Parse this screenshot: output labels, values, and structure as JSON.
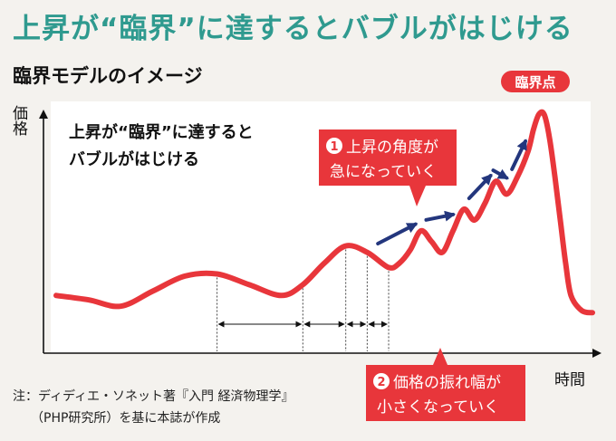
{
  "headline": "上昇が“臨界”に達するとバブルがはじける",
  "section_title": "臨界モデルのイメージ",
  "footnote": {
    "line1": "注：ディディエ・ソネット著『入門 経済物理学』",
    "line2": "（PHP研究所）を基に本誌が作成"
  },
  "colors": {
    "accent_red": "#e8363b",
    "arrow_blue": "#23367d",
    "headline_teal": "#2f9a8f"
  },
  "chart_data": {
    "type": "line",
    "title": "臨界モデルのイメージ",
    "ylabel": "価格",
    "xlabel": "時間",
    "xlim": [
      0,
      100
    ],
    "ylim": [
      0,
      100
    ],
    "series": [
      {
        "name": "価格",
        "x": [
          0,
          6,
          12,
          18,
          24,
          30,
          36,
          42,
          46,
          50,
          54,
          58,
          62,
          64,
          66,
          68,
          70,
          72,
          74,
          76,
          78,
          80,
          82,
          84,
          86,
          88,
          89,
          90,
          91,
          92,
          93,
          94,
          95,
          96,
          98,
          100
        ],
        "y": [
          15,
          13,
          10,
          17,
          24,
          25,
          20,
          15,
          20,
          30,
          38,
          35,
          28,
          30,
          36,
          45,
          40,
          35,
          45,
          55,
          50,
          58,
          68,
          62,
          70,
          82,
          92,
          99,
          99,
          88,
          70,
          50,
          30,
          15,
          8,
          7
        ]
      }
    ],
    "intervals": [
      {
        "x_start": 30,
        "x_end": 46
      },
      {
        "x_start": 46,
        "x_end": 54
      },
      {
        "x_start": 54,
        "x_end": 58
      },
      {
        "x_start": 58,
        "x_end": 62
      }
    ],
    "trend_arrows": [
      {
        "x_start": 60,
        "x_end": 67
      },
      {
        "x_start": 69,
        "x_end": 74
      },
      {
        "x_start": 77,
        "x_end": 81
      },
      {
        "x_start": 81.5,
        "x_end": 84
      },
      {
        "x_start": 85,
        "x_end": 87.5
      }
    ],
    "annotations": {
      "top_left": [
        "上昇が“臨界”に達すると",
        "バブルがはじける"
      ],
      "callout1": {
        "number": "1",
        "line1": "上昇の角度が",
        "line2": "急になっていく"
      },
      "callout2": {
        "number": "2",
        "line1": "価格の振れ幅が",
        "line2": "小さくなっていく"
      },
      "peak_label": "臨界点"
    }
  }
}
